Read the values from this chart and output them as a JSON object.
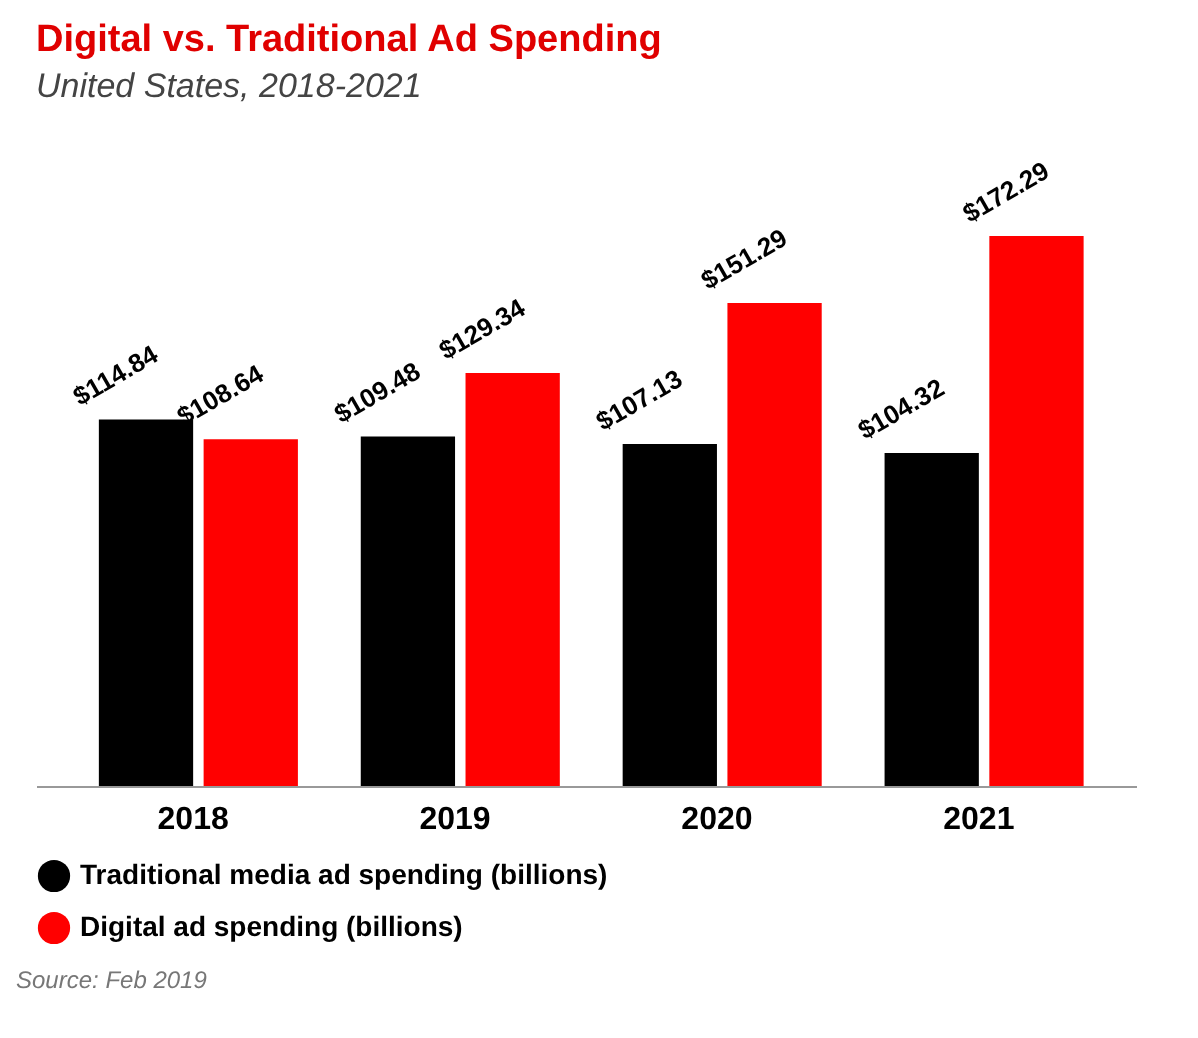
{
  "chart_data": {
    "type": "bar",
    "title": "Digital vs. Traditional Ad Spending",
    "subtitle": "United States, 2018-2021",
    "categories": [
      "2018",
      "2019",
      "2020",
      "2021"
    ],
    "series": [
      {
        "name": "Traditional media ad spending (billions)",
        "color": "#000000",
        "values": [
          114.84,
          109.48,
          107.13,
          104.32
        ],
        "value_labels": [
          "$114.84",
          "$109.48",
          "$107.13",
          "$104.32"
        ]
      },
      {
        "name": "Digital ad spending (billions)",
        "color": "#ff0000",
        "values": [
          108.64,
          129.34,
          151.29,
          172.29
        ],
        "value_labels": [
          "$108.64",
          "$129.34",
          "$151.29",
          "$172.29"
        ]
      }
    ],
    "legend": "bottom left",
    "annotations": [
      "Source: Feb 2019"
    ]
  }
}
